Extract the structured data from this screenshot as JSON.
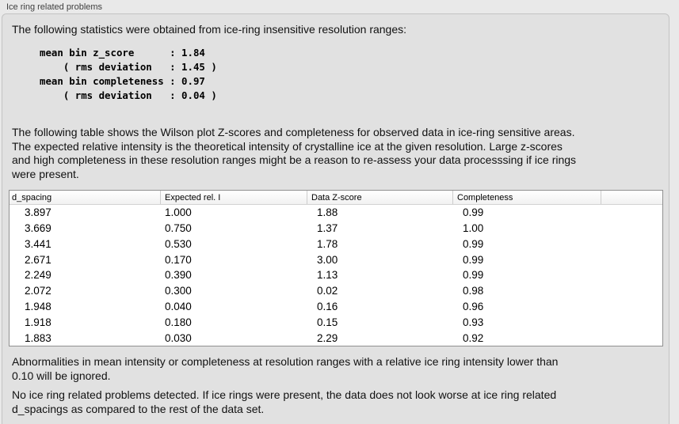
{
  "panel": {
    "title": "Ice ring related problems"
  },
  "intro_text": "The following statistics were obtained from ice-ring insensitive resolution ranges:",
  "stats_block": {
    "text": "mean bin z_score      : 1.84\n    ( rms deviation   : 1.45 )\nmean bin completeness : 0.97\n    ( rms deviation   : 0.04 )",
    "mean_bin_z_score": "1.84",
    "z_score_rms_deviation": "1.45",
    "mean_bin_completeness": "0.97",
    "completeness_rms_deviation": "0.04"
  },
  "table_description": "The following table shows the Wilson plot Z-scores and completeness for observed data in ice-ring sensitive areas.\nThe expected relative intensity is the theoretical intensity of crystalline ice at the given resolution. Large z-scores\nand high completeness in these resolution ranges might be a reason to re-assess your data processsing if ice rings\nwere present.",
  "table": {
    "columns": [
      "d_spacing",
      "Expected rel. I",
      "Data Z-score",
      "Completeness"
    ],
    "rows": [
      [
        "3.897",
        "1.000",
        "1.88",
        "0.99"
      ],
      [
        "3.669",
        "0.750",
        "1.37",
        "1.00"
      ],
      [
        "3.441",
        "0.530",
        "1.78",
        "0.99"
      ],
      [
        "2.671",
        "0.170",
        "3.00",
        "0.99"
      ],
      [
        "2.249",
        "0.390",
        "1.13",
        "0.99"
      ],
      [
        "2.072",
        "0.300",
        "0.02",
        "0.98"
      ],
      [
        "1.948",
        "0.040",
        "0.16",
        "0.96"
      ],
      [
        "1.918",
        "0.180",
        "0.15",
        "0.93"
      ],
      [
        "1.883",
        "0.030",
        "2.29",
        "0.92"
      ]
    ]
  },
  "ignore_note": "Abnormalities in mean intensity or completeness at resolution ranges with a relative ice ring intensity lower than\n0.10 will be ignored.",
  "conclusion": "No ice ring related problems detected. If ice rings were present, the data does not look worse at ice ring related\nd_spacings as compared to the rest of the data set.",
  "colors": {
    "outer_background": "#e9e9e9",
    "groupbox_background": "#e1e1e1",
    "groupbox_border": "#c3c3c3",
    "table_background": "#ffffff",
    "table_border": "#909090",
    "text": "#111111"
  }
}
